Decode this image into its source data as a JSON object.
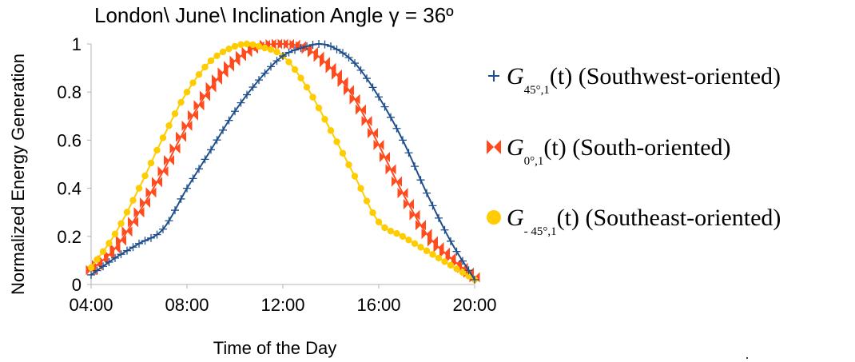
{
  "chart_data": {
    "type": "line",
    "title": "London\\ June\\ Inclination Angle γ = 36º",
    "xlabel": "Time of the Day",
    "ylabel": "Normalized Energy Generation",
    "xlim": [
      4,
      20
    ],
    "ylim": [
      0,
      1
    ],
    "x_ticks": [
      4,
      8,
      12,
      16,
      20
    ],
    "x_tick_labels": [
      "04:00",
      "08:00",
      "12:00",
      "16:00",
      "20:00"
    ],
    "y_ticks": [
      0,
      0.2,
      0.4,
      0.6,
      0.8,
      1
    ],
    "y_tick_labels": [
      "0",
      "0.2",
      "0.4",
      "0.6",
      "0.8",
      "1"
    ],
    "grid": {
      "horizontal": false,
      "vertical": false
    },
    "legend_placement": "right",
    "series": [
      {
        "name": "G45°,1(t) (Southwest-oriented)",
        "legend": {
          "symbol": "G",
          "subscript": "45°,1",
          "arg": "(t)",
          "label": "(Southwest-oriented)"
        },
        "color": "#1f4e8c",
        "marker": "plus",
        "x": [
          4,
          5,
          6,
          7,
          8,
          9,
          10,
          11,
          12,
          13,
          13.5,
          14,
          15,
          16,
          17,
          18,
          19,
          20
        ],
        "y": [
          0.04,
          0.11,
          0.17,
          0.23,
          0.4,
          0.56,
          0.72,
          0.85,
          0.95,
          0.99,
          1.0,
          0.99,
          0.92,
          0.78,
          0.6,
          0.38,
          0.18,
          0.02
        ]
      },
      {
        "name": "G0°,1(t) (South-oriented)",
        "legend": {
          "symbol": "G",
          "subscript": "0°,1",
          "arg": "(t)",
          "label": "(South-oriented)"
        },
        "color": "#ff4b1e",
        "marker": "bowtie",
        "x": [
          4,
          5,
          6,
          7,
          8,
          9,
          10,
          11,
          12,
          13,
          14,
          15,
          16,
          17,
          18,
          19,
          20
        ],
        "y": [
          0.06,
          0.15,
          0.3,
          0.47,
          0.66,
          0.82,
          0.93,
          0.99,
          1.0,
          0.98,
          0.9,
          0.77,
          0.58,
          0.38,
          0.21,
          0.11,
          0.03
        ]
      },
      {
        "name": "G-45°,1(t) (Southeast-oriented)",
        "legend": {
          "symbol": "G",
          "subscript": "- 45°,1",
          "arg": "(t)",
          "label": "(Southeast-oriented)"
        },
        "color": "#ffcc00",
        "marker": "circle",
        "x": [
          4,
          5,
          6,
          7,
          8,
          9,
          10,
          10.5,
          11,
          12,
          13,
          14,
          15,
          16,
          17,
          18,
          19,
          20
        ],
        "y": [
          0.07,
          0.21,
          0.4,
          0.61,
          0.8,
          0.93,
          0.99,
          1.0,
          0.99,
          0.95,
          0.82,
          0.64,
          0.45,
          0.26,
          0.2,
          0.14,
          0.08,
          0.02
        ]
      }
    ]
  }
}
